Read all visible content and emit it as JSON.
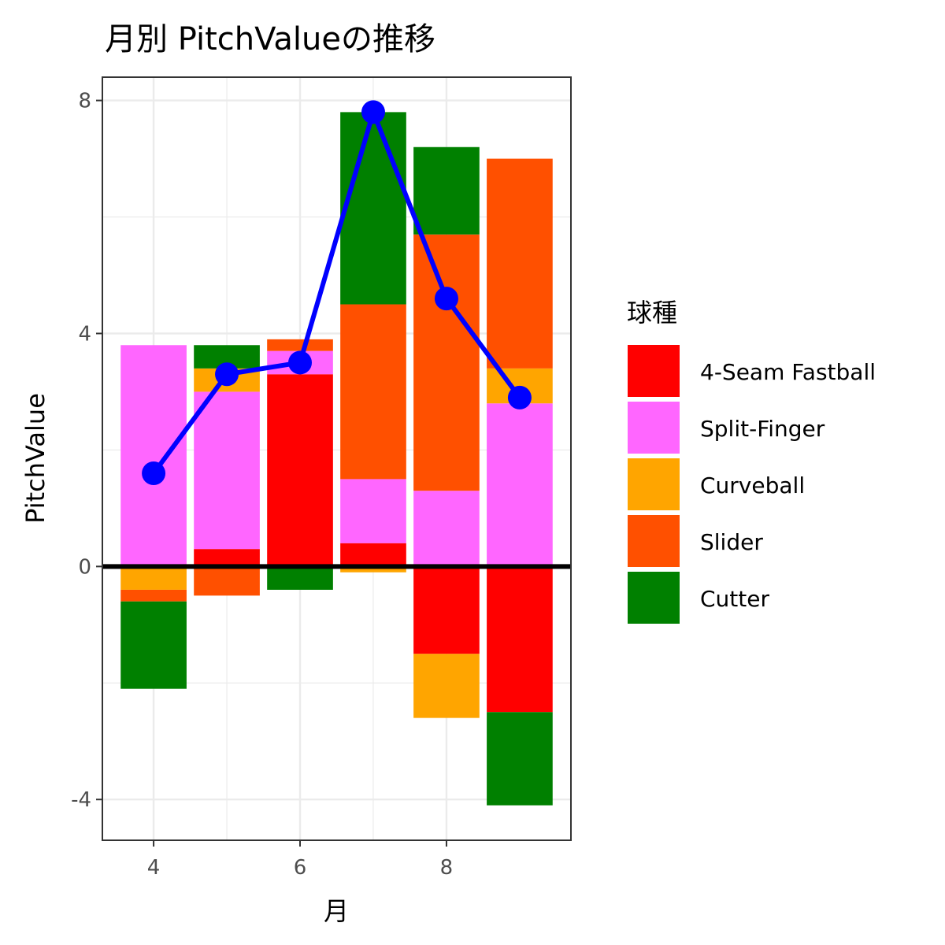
{
  "chart_data": {
    "type": "bar",
    "title": "月別 PitchValueの推移",
    "xlabel": "月",
    "ylabel": "PitchValue",
    "xlim": [
      3.3,
      9.7
    ],
    "ylim": [
      -4.7,
      8.4
    ],
    "x_ticks": [
      4,
      6,
      8
    ],
    "y_ticks": [
      -4,
      0,
      4,
      8
    ],
    "grid": true,
    "zero_line": true,
    "legend": {
      "title": "球種",
      "placement": "right"
    },
    "categories": [
      4,
      5,
      6,
      7,
      8,
      9
    ],
    "series": [
      {
        "name": "4-Seam Fastball",
        "color": "#ff0000",
        "values": [
          0,
          0.3,
          3.3,
          0.4,
          -1.5,
          -2.5
        ]
      },
      {
        "name": "Split-Finger",
        "color": "#ff66ff",
        "values": [
          3.8,
          2.7,
          0.4,
          1.1,
          1.3,
          2.8
        ]
      },
      {
        "name": "Curveball",
        "color": "#ffa500",
        "values": [
          -0.4,
          0.4,
          0,
          -0.1,
          -1.1,
          0.6
        ]
      },
      {
        "name": "Slider",
        "color": "#ff5000",
        "values": [
          -0.2,
          -0.5,
          0.2,
          3.0,
          4.4,
          3.6
        ]
      },
      {
        "name": "Cutter",
        "color": "#008000",
        "values": [
          -1.5,
          0.4,
          -0.4,
          3.3,
          1.5,
          -1.6
        ]
      }
    ],
    "total_line": {
      "color": "#0000ff",
      "x": [
        4,
        5,
        6,
        7,
        8,
        9
      ],
      "y": [
        1.6,
        3.3,
        3.5,
        7.8,
        4.6,
        2.9
      ]
    }
  }
}
